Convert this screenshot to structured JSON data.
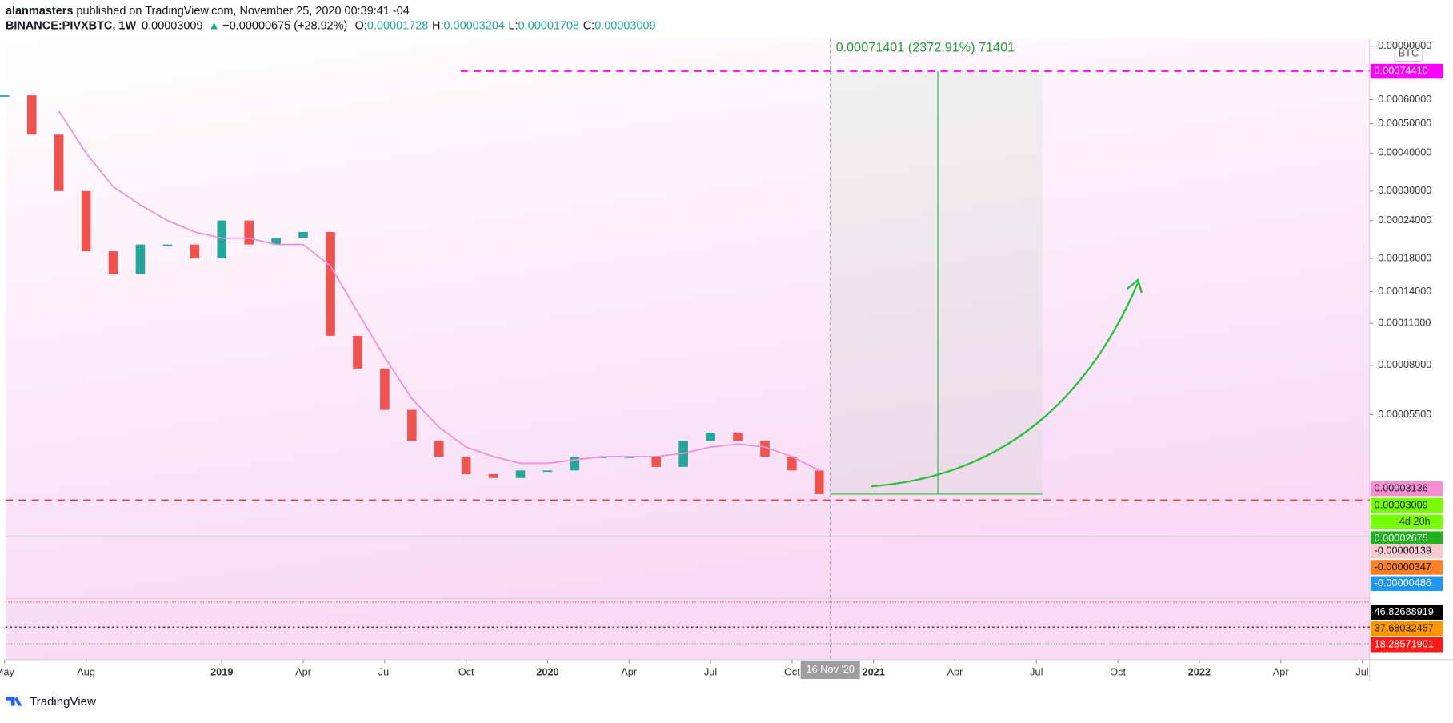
{
  "header": {
    "author": "alanmasters",
    "published": "published on TradingView.com, November 25, 2020 00:39:41 -04",
    "symbol": "BINANCE:PIVXBTC, 1W",
    "last": "0.00003009",
    "arrow": "▲",
    "change": "+0.00000675 (+28.92%)",
    "ohlc": [
      {
        "key": "O:",
        "value": "0.00001728"
      },
      {
        "key": "H:",
        "value": "0.00003204"
      },
      {
        "key": "L:",
        "value": "0.00001708"
      },
      {
        "key": "C:",
        "value": "0.00003009"
      }
    ]
  },
  "chart_data": {
    "type": "candlestick",
    "currency": "BTC",
    "log_scale": true,
    "x": [
      "2018-05",
      "2018-06",
      "2018-07",
      "2018-08",
      "2018-09",
      "2018-10",
      "2018-11",
      "2018-12",
      "2019-01",
      "2019-02",
      "2019-03",
      "2019-04",
      "2019-05",
      "2019-06",
      "2019-07",
      "2019-08",
      "2019-09",
      "2019-10",
      "2019-11",
      "2019-12",
      "2020-01",
      "2020-02",
      "2020-03",
      "2020-04",
      "2020-05",
      "2020-06",
      "2020-07",
      "2020-08",
      "2020-09",
      "2020-10",
      "2020-11"
    ],
    "series": [
      {
        "color": "#26a69a",
        "down_color": "#ef5350",
        "values": [
          0.00062,
          0.00046,
          0.0003,
          0.00019,
          0.00016,
          0.0002,
          0.0002,
          0.00018,
          0.00024,
          0.0002,
          0.00021,
          0.00022,
          0.0001,
          7.8e-05,
          5.7e-05,
          4.5e-05,
          4e-05,
          3.5e-05,
          3.4e-05,
          3.6e-05,
          3.6e-05,
          4e-05,
          4e-05,
          4e-05,
          3.7e-05,
          4.5e-05,
          4.8e-05,
          4.5e-05,
          4e-05,
          3.6e-05,
          3.009e-05
        ]
      },
      {
        "color": "#f48fd0",
        "values": [
          null,
          null,
          0.00055,
          0.0004,
          0.00031,
          0.00027,
          0.00024,
          0.00022,
          0.00021,
          0.00021,
          0.0002,
          0.0002,
          0.00017,
          0.00012,
          8.5e-05,
          6.2e-05,
          5e-05,
          4.3e-05,
          4e-05,
          3.8e-05,
          3.8e-05,
          3.9e-05,
          4e-05,
          4e-05,
          4e-05,
          4.1e-05,
          4.3e-05,
          4.4e-05,
          4.3e-05,
          4e-05,
          3.6e-05
        ]
      }
    ],
    "xlim": [
      "2018-05",
      "2022-07"
    ],
    "xticks": [
      {
        "value": "2018-05",
        "label": "May"
      },
      {
        "value": "2018-08",
        "label": "Aug"
      },
      {
        "value": "2019-01",
        "label": "2019"
      },
      {
        "value": "2019-04",
        "label": "Apr"
      },
      {
        "value": "2019-07",
        "label": "Jul"
      },
      {
        "value": "2019-10",
        "label": "Oct"
      },
      {
        "value": "2020-01",
        "label": "2020"
      },
      {
        "value": "2020-04",
        "label": "Apr"
      },
      {
        "value": "2020-07",
        "label": "Jul"
      },
      {
        "value": "2020-10",
        "label": "Oct"
      },
      {
        "value": "2021-01",
        "label": "2021"
      },
      {
        "value": "2021-04",
        "label": "Apr"
      },
      {
        "value": "2021-07",
        "label": "Jul"
      },
      {
        "value": "2021-10",
        "label": "Oct"
      },
      {
        "value": "2022-01",
        "label": "2022"
      },
      {
        "value": "2022-04",
        "label": "Apr"
      },
      {
        "value": "2022-07",
        "label": "Jul"
      }
    ],
    "ylim": [
      2.2e-05,
      0.00095
    ],
    "yticks": [
      {
        "value": 0.0009,
        "label": "0.00090000"
      },
      {
        "value": 0.0006,
        "label": "0.00060000"
      },
      {
        "value": 0.0005,
        "label": "0.00050000"
      },
      {
        "value": 0.0004,
        "label": "0.00040000"
      },
      {
        "value": 0.0003,
        "label": "0.00030000"
      },
      {
        "value": 0.00024,
        "label": "0.00024000"
      },
      {
        "value": 0.00018,
        "label": "0.00018000"
      },
      {
        "value": 0.00014,
        "label": "0.00014000"
      },
      {
        "value": 0.00011,
        "label": "0.00011000"
      },
      {
        "value": 8e-05,
        "label": "0.00008000"
      },
      {
        "value": 5.5e-05,
        "label": "0.00005500"
      }
    ],
    "price_labels": [
      {
        "value": 0.0007441,
        "label": "0.00074410",
        "color": "#ff00ff",
        "text_color": "#ffffff"
      },
      {
        "value": 3.136e-05,
        "label": "0.00003136",
        "color": "#f48fd0",
        "text_color": "#131722"
      },
      {
        "value": 3.009e-05,
        "label": "0.00003009",
        "color": "#76ff03",
        "text_color": "#131722"
      },
      {
        "value": 2.675e-05,
        "label": "0.00002675",
        "color": "#1fb31f",
        "text_color": "#ffffff"
      }
    ],
    "countdown": "4d 20h",
    "target": 0.0007441,
    "entry": 3.009e-05,
    "measure_label": "0.00071401 (2372.91%) 71401",
    "cursor_date": "16 Nov '20"
  },
  "indicators": {
    "macd_labels": [
      {
        "label": "-0.00000139",
        "color": "#f8c9cf",
        "text_color": "#131722"
      },
      {
        "label": "-0.00000347",
        "color": "#ff7f27",
        "text_color": "#131722"
      },
      {
        "label": "-0.00000486",
        "color": "#2196f3",
        "text_color": "#ffffff"
      }
    ],
    "rsi_labels": [
      {
        "label": "46.82688919",
        "color": "#000000",
        "text_color": "#ffffff"
      },
      {
        "label": "37.68032457",
        "color": "#ff9800",
        "text_color": "#131722"
      },
      {
        "label": "18.28571901",
        "color": "#ff1a1a",
        "text_color": "#ffffff"
      }
    ]
  },
  "footer": "TradingView"
}
